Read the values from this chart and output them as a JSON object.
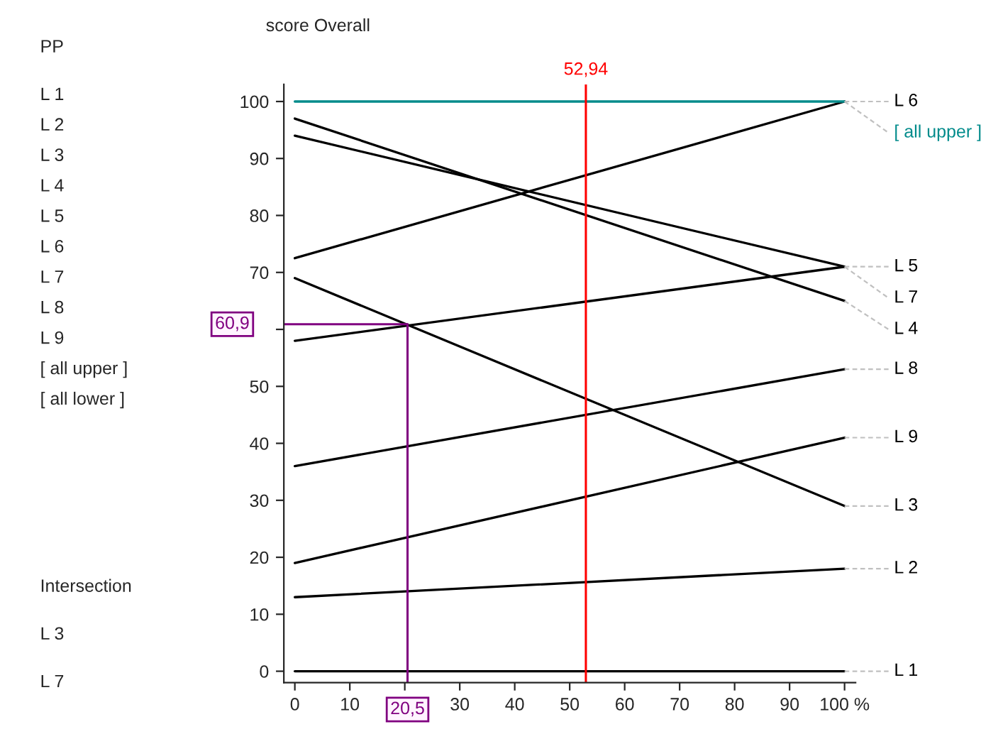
{
  "chart_data": {
    "type": "line",
    "title": "score Overall",
    "x": [
      0,
      100
    ],
    "series": [
      {
        "name": "L 1",
        "color": "#000000",
        "values": [
          0,
          0
        ]
      },
      {
        "name": "L 2",
        "color": "#000000",
        "values": [
          13,
          18
        ]
      },
      {
        "name": "L 3",
        "color": "#000000",
        "values": [
          69,
          29
        ]
      },
      {
        "name": "L 4",
        "color": "#000000",
        "values": [
          97,
          65
        ]
      },
      {
        "name": "L 5",
        "color": "#000000",
        "values": [
          94,
          71
        ]
      },
      {
        "name": "L 6",
        "color": "#000000",
        "values": [
          72.5,
          100
        ]
      },
      {
        "name": "L 7",
        "color": "#000000",
        "values": [
          58,
          71
        ]
      },
      {
        "name": "L 8",
        "color": "#000000",
        "values": [
          36,
          53
        ]
      },
      {
        "name": "L 9",
        "color": "#000000",
        "values": [
          19,
          41
        ]
      },
      {
        "name": "[ all upper ]",
        "color": "#008b8b",
        "values": [
          100,
          100
        ]
      }
    ],
    "xlim": [
      -2,
      102
    ],
    "ylim": [
      -2,
      103
    ],
    "xticks": [
      0,
      10,
      {
        "value": 20,
        "label": null
      },
      30,
      40,
      50,
      60,
      70,
      80,
      90,
      {
        "value": 100,
        "label": "100 %"
      }
    ],
    "yticks": [
      0,
      10,
      20,
      30,
      40,
      50,
      {
        "value": 60,
        "label": null
      },
      70,
      80,
      90,
      100
    ],
    "ref_lines": [
      {
        "axis": "x",
        "value": 52.94,
        "label": "52,94",
        "color": "#ff0000"
      },
      {
        "axis": "x",
        "value": 20.5,
        "label": "20,5",
        "color": "#800080"
      },
      {
        "axis": "y",
        "value": 60.9,
        "label": "60,9",
        "color": "#800080"
      }
    ],
    "annotations": [
      "PP",
      "L 1",
      "L 2",
      "L 3",
      "L 4",
      "L 5",
      "L 6",
      "L 7",
      "L 8",
      "L 9",
      "[ all upper ]",
      "[ all lower ]",
      "Intersection",
      "L 3",
      "L 7"
    ],
    "grid": false,
    "legend": false
  }
}
